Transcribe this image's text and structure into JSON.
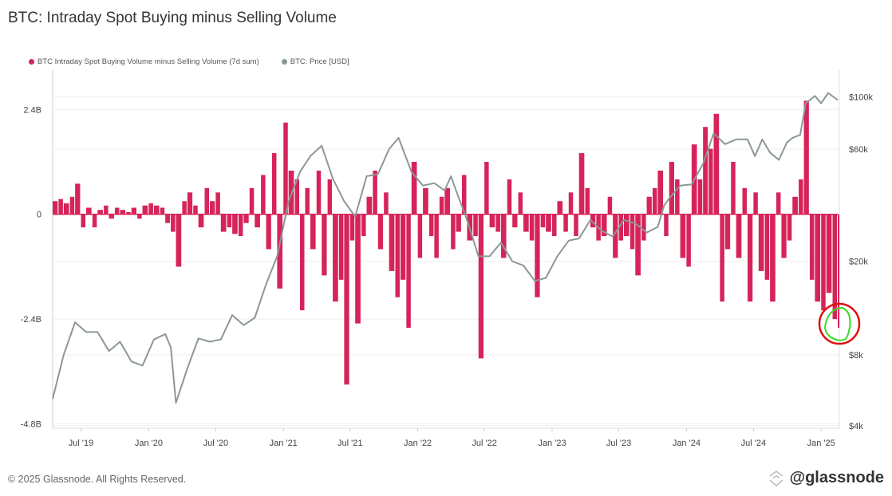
{
  "title": "BTC: Intraday Spot Buying minus Selling Volume",
  "footer": "© 2025 Glassnode. All Rights Reserved.",
  "logo": "@glassnode",
  "colors": {
    "volume": "#d6245a",
    "price": "#8c9799",
    "grid": "#eeeeee",
    "annotation_circle": "#e01010",
    "annotation_scribble": "#33dd22"
  },
  "chart_data": {
    "type": "bar+line",
    "title": "BTC: Intraday Spot Buying minus Selling Volume",
    "legend": {
      "placement": "top-left",
      "entries": [
        "BTC Intraday Spot Buying Volume minus Selling Volume (7d sum)",
        "BTC: Price [USD]"
      ]
    },
    "x_range": [
      "2019-04-15",
      "2025-02-15"
    ],
    "x_ticks": [
      {
        "date": "2019-07-01",
        "label": "Jul '19"
      },
      {
        "date": "2020-01-01",
        "label": "Jan '20"
      },
      {
        "date": "2020-07-01",
        "label": "Jul '20"
      },
      {
        "date": "2021-01-01",
        "label": "Jan '21"
      },
      {
        "date": "2021-07-01",
        "label": "Jul '21"
      },
      {
        "date": "2022-01-01",
        "label": "Jan '22"
      },
      {
        "date": "2022-07-01",
        "label": "Jul '22"
      },
      {
        "date": "2023-01-01",
        "label": "Jan '23"
      },
      {
        "date": "2023-07-01",
        "label": "Jul '23"
      },
      {
        "date": "2024-01-01",
        "label": "Jan '24"
      },
      {
        "date": "2024-07-01",
        "label": "Jul '24"
      },
      {
        "date": "2025-01-01",
        "label": "Jan '25"
      }
    ],
    "y_left": {
      "unit": "B",
      "range": [
        -4.9,
        3.3
      ],
      "ticks": [
        {
          "v": 2.4,
          "label": "2.4B"
        },
        {
          "v": 0,
          "label": "0"
        },
        {
          "v": -2.4,
          "label": "-2.4B"
        },
        {
          "v": -4.8,
          "label": "-4.8B"
        }
      ]
    },
    "y_right": {
      "scale": "log",
      "range": [
        3900,
        130000
      ],
      "ticks": [
        {
          "v": 100000,
          "label": "$100k"
        },
        {
          "v": 60000,
          "label": "$60k"
        },
        {
          "v": 20000,
          "label": "$20k"
        },
        {
          "v": 8000,
          "label": "$8k"
        },
        {
          "v": 4000,
          "label": "$4k"
        }
      ]
    },
    "grid": true,
    "series": [
      {
        "name": "BTC Intraday Spot Buying Volume minus Selling Volume (7d sum)",
        "type": "bar",
        "axis": "left",
        "points": [
          [
            "2019-04-15",
            0.3
          ],
          [
            "2019-05-01",
            0.35
          ],
          [
            "2019-05-15",
            0.25
          ],
          [
            "2019-06-01",
            0.4
          ],
          [
            "2019-06-15",
            0.7
          ],
          [
            "2019-07-01",
            -0.3
          ],
          [
            "2019-07-15",
            0.15
          ],
          [
            "2019-08-01",
            -0.3
          ],
          [
            "2019-08-15",
            0.1
          ],
          [
            "2019-09-01",
            0.2
          ],
          [
            "2019-09-15",
            -0.1
          ],
          [
            "2019-10-01",
            0.15
          ],
          [
            "2019-10-15",
            0.1
          ],
          [
            "2019-11-01",
            0.05
          ],
          [
            "2019-11-15",
            0.15
          ],
          [
            "2019-12-01",
            -0.1
          ],
          [
            "2019-12-15",
            0.2
          ],
          [
            "2020-01-01",
            0.25
          ],
          [
            "2020-01-15",
            0.2
          ],
          [
            "2020-02-01",
            0.15
          ],
          [
            "2020-02-15",
            -0.2
          ],
          [
            "2020-03-01",
            -0.4
          ],
          [
            "2020-03-15",
            -1.2
          ],
          [
            "2020-04-01",
            0.3
          ],
          [
            "2020-04-15",
            0.5
          ],
          [
            "2020-05-01",
            0.2
          ],
          [
            "2020-05-15",
            -0.3
          ],
          [
            "2020-06-01",
            0.6
          ],
          [
            "2020-06-15",
            0.3
          ],
          [
            "2020-07-01",
            0.5
          ],
          [
            "2020-07-15",
            -0.4
          ],
          [
            "2020-08-01",
            -0.3
          ],
          [
            "2020-08-15",
            -0.45
          ],
          [
            "2020-09-01",
            -0.5
          ],
          [
            "2020-09-15",
            -0.2
          ],
          [
            "2020-10-01",
            0.6
          ],
          [
            "2020-10-15",
            -0.3
          ],
          [
            "2020-11-01",
            0.9
          ],
          [
            "2020-11-15",
            -0.8
          ],
          [
            "2020-12-01",
            1.4
          ],
          [
            "2020-12-15",
            -1.7
          ],
          [
            "2021-01-01",
            2.1
          ],
          [
            "2021-01-15",
            1.0
          ],
          [
            "2021-02-01",
            0.8
          ],
          [
            "2021-02-15",
            -2.2
          ],
          [
            "2021-03-01",
            0.6
          ],
          [
            "2021-03-15",
            -0.8
          ],
          [
            "2021-04-01",
            1.0
          ],
          [
            "2021-04-15",
            -1.4
          ],
          [
            "2021-05-01",
            0.8
          ],
          [
            "2021-05-15",
            -2.0
          ],
          [
            "2021-06-01",
            -1.5
          ],
          [
            "2021-06-15",
            -3.9
          ],
          [
            "2021-07-01",
            -0.6
          ],
          [
            "2021-07-15",
            -2.5
          ],
          [
            "2021-08-01",
            -0.5
          ],
          [
            "2021-08-15",
            0.4
          ],
          [
            "2021-09-01",
            1.0
          ],
          [
            "2021-09-15",
            -0.8
          ],
          [
            "2021-10-01",
            0.5
          ],
          [
            "2021-10-15",
            -1.3
          ],
          [
            "2021-11-01",
            -1.9
          ],
          [
            "2021-11-15",
            -1.5
          ],
          [
            "2021-12-01",
            -2.6
          ],
          [
            "2021-12-15",
            1.2
          ],
          [
            "2022-01-01",
            -1.0
          ],
          [
            "2022-01-15",
            0.6
          ],
          [
            "2022-02-01",
            -0.5
          ],
          [
            "2022-02-15",
            -1.0
          ],
          [
            "2022-03-01",
            0.4
          ],
          [
            "2022-03-15",
            0.6
          ],
          [
            "2022-04-01",
            -0.8
          ],
          [
            "2022-04-15",
            -0.4
          ],
          [
            "2022-05-01",
            0.9
          ],
          [
            "2022-05-15",
            -0.6
          ],
          [
            "2022-06-01",
            -0.5
          ],
          [
            "2022-06-15",
            -3.3
          ],
          [
            "2022-07-01",
            1.2
          ],
          [
            "2022-07-15",
            -0.3
          ],
          [
            "2022-08-01",
            -0.4
          ],
          [
            "2022-08-15",
            -1.0
          ],
          [
            "2022-09-01",
            0.8
          ],
          [
            "2022-09-15",
            -0.3
          ],
          [
            "2022-10-01",
            0.5
          ],
          [
            "2022-10-15",
            -0.4
          ],
          [
            "2022-11-01",
            -0.6
          ],
          [
            "2022-11-15",
            -1.9
          ],
          [
            "2022-12-01",
            -0.3
          ],
          [
            "2022-12-15",
            -0.4
          ],
          [
            "2023-01-01",
            -0.5
          ],
          [
            "2023-01-15",
            0.3
          ],
          [
            "2023-02-01",
            -0.4
          ],
          [
            "2023-02-15",
            0.5
          ],
          [
            "2023-03-01",
            -0.5
          ],
          [
            "2023-03-15",
            1.4
          ],
          [
            "2023-04-01",
            0.6
          ],
          [
            "2023-04-15",
            -0.3
          ],
          [
            "2023-05-01",
            -0.6
          ],
          [
            "2023-05-15",
            -0.5
          ],
          [
            "2023-06-01",
            0.4
          ],
          [
            "2023-06-15",
            -1.0
          ],
          [
            "2023-07-01",
            -0.6
          ],
          [
            "2023-07-15",
            -0.5
          ],
          [
            "2023-08-01",
            -0.8
          ],
          [
            "2023-08-15",
            -1.4
          ],
          [
            "2023-09-01",
            -0.6
          ],
          [
            "2023-09-15",
            0.4
          ],
          [
            "2023-10-01",
            0.6
          ],
          [
            "2023-10-15",
            1.0
          ],
          [
            "2023-11-01",
            -0.5
          ],
          [
            "2023-11-15",
            1.2
          ],
          [
            "2023-12-01",
            0.8
          ],
          [
            "2023-12-15",
            -1.0
          ],
          [
            "2024-01-01",
            -1.2
          ],
          [
            "2024-01-15",
            1.6
          ],
          [
            "2024-02-01",
            0.8
          ],
          [
            "2024-02-15",
            2.0
          ],
          [
            "2024-03-01",
            1.5
          ],
          [
            "2024-03-15",
            2.3
          ],
          [
            "2024-04-01",
            -2.0
          ],
          [
            "2024-04-15",
            -0.8
          ],
          [
            "2024-05-01",
            1.2
          ],
          [
            "2024-05-15",
            -1.0
          ],
          [
            "2024-06-01",
            0.6
          ],
          [
            "2024-06-15",
            -2.0
          ],
          [
            "2024-07-01",
            0.5
          ],
          [
            "2024-07-15",
            -1.3
          ],
          [
            "2024-08-01",
            -1.5
          ],
          [
            "2024-08-15",
            -2.0
          ],
          [
            "2024-09-01",
            0.5
          ],
          [
            "2024-09-15",
            -1.0
          ],
          [
            "2024-10-01",
            -0.6
          ],
          [
            "2024-10-15",
            0.4
          ],
          [
            "2024-11-01",
            0.8
          ],
          [
            "2024-11-15",
            2.6
          ],
          [
            "2024-12-01",
            -1.5
          ],
          [
            "2024-12-15",
            -2.0
          ],
          [
            "2025-01-01",
            -2.2
          ],
          [
            "2025-01-15",
            -1.8
          ],
          [
            "2025-02-01",
            -2.4
          ],
          [
            "2025-02-15",
            -2.6
          ]
        ]
      },
      {
        "name": "BTC: Price [USD]",
        "type": "line",
        "axis": "right",
        "points": [
          [
            "2019-04-15",
            5200
          ],
          [
            "2019-05-15",
            8000
          ],
          [
            "2019-06-15",
            11000
          ],
          [
            "2019-07-15",
            10000
          ],
          [
            "2019-08-15",
            10000
          ],
          [
            "2019-09-15",
            8300
          ],
          [
            "2019-10-15",
            9100
          ],
          [
            "2019-11-15",
            7500
          ],
          [
            "2019-12-15",
            7200
          ],
          [
            "2020-01-15",
            9300
          ],
          [
            "2020-02-15",
            9800
          ],
          [
            "2020-03-01",
            8600
          ],
          [
            "2020-03-15",
            5000
          ],
          [
            "2020-04-15",
            7000
          ],
          [
            "2020-05-15",
            9400
          ],
          [
            "2020-06-15",
            9100
          ],
          [
            "2020-07-15",
            9300
          ],
          [
            "2020-08-15",
            11800
          ],
          [
            "2020-09-15",
            10700
          ],
          [
            "2020-10-15",
            11500
          ],
          [
            "2020-11-15",
            16000
          ],
          [
            "2020-12-15",
            21000
          ],
          [
            "2021-01-15",
            36000
          ],
          [
            "2021-02-15",
            48000
          ],
          [
            "2021-03-15",
            56000
          ],
          [
            "2021-04-15",
            62000
          ],
          [
            "2021-05-15",
            45000
          ],
          [
            "2021-06-15",
            36000
          ],
          [
            "2021-07-15",
            31000
          ],
          [
            "2021-08-15",
            46000
          ],
          [
            "2021-09-15",
            47000
          ],
          [
            "2021-10-15",
            60000
          ],
          [
            "2021-11-10",
            67000
          ],
          [
            "2021-12-15",
            48000
          ],
          [
            "2022-01-15",
            42000
          ],
          [
            "2022-02-15",
            43000
          ],
          [
            "2022-03-15",
            40000
          ],
          [
            "2022-04-01",
            46000
          ],
          [
            "2022-04-15",
            40000
          ],
          [
            "2022-05-15",
            30000
          ],
          [
            "2022-06-15",
            21000
          ],
          [
            "2022-07-15",
            21000
          ],
          [
            "2022-08-15",
            24000
          ],
          [
            "2022-09-15",
            20000
          ],
          [
            "2022-10-15",
            19200
          ],
          [
            "2022-11-15",
            16500
          ],
          [
            "2022-12-15",
            17000
          ],
          [
            "2023-01-15",
            21000
          ],
          [
            "2023-02-15",
            24500
          ],
          [
            "2023-03-15",
            25000
          ],
          [
            "2023-04-15",
            30000
          ],
          [
            "2023-05-15",
            27000
          ],
          [
            "2023-06-15",
            25500
          ],
          [
            "2023-07-15",
            30000
          ],
          [
            "2023-08-15",
            29000
          ],
          [
            "2023-09-15",
            26500
          ],
          [
            "2023-10-15",
            28000
          ],
          [
            "2023-11-01",
            34500
          ],
          [
            "2023-11-15",
            37000
          ],
          [
            "2023-12-15",
            42000
          ],
          [
            "2024-01-15",
            42500
          ],
          [
            "2024-02-15",
            52000
          ],
          [
            "2024-03-15",
            70000
          ],
          [
            "2024-04-15",
            63000
          ],
          [
            "2024-05-15",
            66000
          ],
          [
            "2024-06-15",
            66000
          ],
          [
            "2024-07-05",
            56000
          ],
          [
            "2024-07-25",
            66000
          ],
          [
            "2024-08-15",
            58000
          ],
          [
            "2024-09-08",
            54000
          ],
          [
            "2024-09-30",
            64000
          ],
          [
            "2024-10-15",
            67000
          ],
          [
            "2024-11-05",
            69000
          ],
          [
            "2024-11-20",
            94000
          ],
          [
            "2024-12-15",
            101000
          ],
          [
            "2025-01-01",
            94000
          ],
          [
            "2025-01-20",
            104000
          ],
          [
            "2025-02-15",
            97000
          ]
        ]
      }
    ],
    "annotation": "hand-drawn circle around latest value"
  }
}
